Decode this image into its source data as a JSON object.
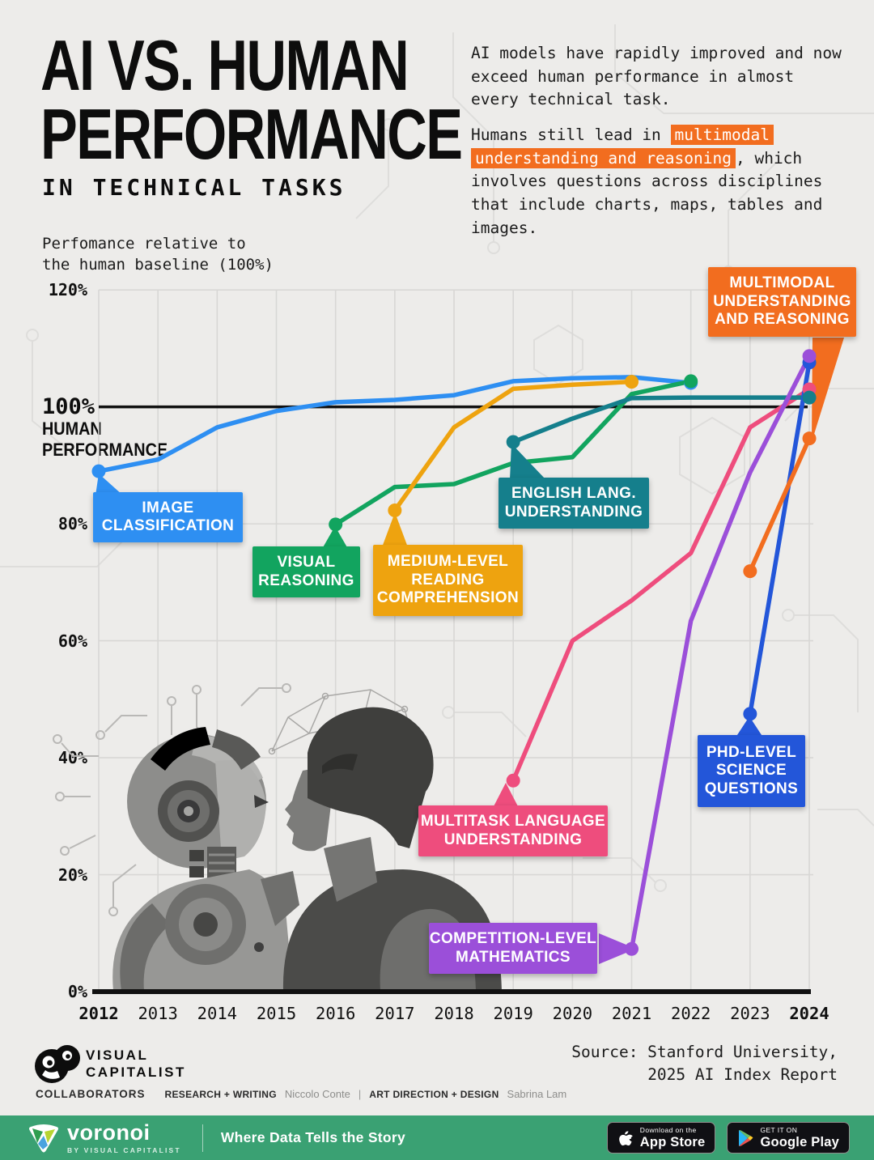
{
  "title": {
    "line1": "AI VS. HUMAN",
    "line2": "PERFORMANCE",
    "subtitle": "IN TECHNICAL TASKS"
  },
  "intro": {
    "para1": "AI models have rapidly improved and now exceed human performance in almost every technical task.",
    "para2_pre": "Humans still lead in ",
    "para2_highlight": "multimodal understanding and reasoning",
    "para2_post": ", which involves questions across disciplines that include charts, maps, tables and images.",
    "highlight_color": "#f26d1f"
  },
  "axis_note": "Perfomance relative to\nthe human baseline (100%)",
  "baseline_label": {
    "pct": "100%",
    "word1": "HUMAN",
    "word2": "PERFORMANCE"
  },
  "chart_data": {
    "type": "line",
    "title": "AI vs. human performance in technical tasks",
    "ylabel": "Performance relative to the human baseline (100%)",
    "ylim": [
      0,
      120
    ],
    "baseline": 100,
    "grid": true,
    "x": [
      2012,
      2013,
      2014,
      2015,
      2016,
      2017,
      2018,
      2019,
      2020,
      2021,
      2022,
      2023,
      2024
    ],
    "x_ticks": [
      {
        "year": 2012,
        "label": "2012",
        "bold": true
      },
      {
        "year": 2013,
        "label": "2013",
        "bold": false
      },
      {
        "year": 2014,
        "label": "2014",
        "bold": false
      },
      {
        "year": 2015,
        "label": "2015",
        "bold": false
      },
      {
        "year": 2016,
        "label": "2016",
        "bold": false
      },
      {
        "year": 2017,
        "label": "2017",
        "bold": false
      },
      {
        "year": 2018,
        "label": "2018",
        "bold": false
      },
      {
        "year": 2019,
        "label": "2019",
        "bold": false
      },
      {
        "year": 2020,
        "label": "2020",
        "bold": false
      },
      {
        "year": 2021,
        "label": "2021",
        "bold": false
      },
      {
        "year": 2022,
        "label": "2022",
        "bold": false
      },
      {
        "year": 2023,
        "label": "2023",
        "bold": false
      },
      {
        "year": 2024,
        "label": "2024",
        "bold": true
      }
    ],
    "y_ticks": [
      {
        "value": 0,
        "label": "0%"
      },
      {
        "value": 20,
        "label": "20%"
      },
      {
        "value": 40,
        "label": "40%"
      },
      {
        "value": 60,
        "label": "60%"
      },
      {
        "value": 80,
        "label": "80%"
      },
      {
        "value": 120,
        "label": "120%"
      }
    ],
    "series": [
      {
        "key": "image_classification",
        "name": "Image Classification",
        "callout": "IMAGE\nCLASSIFICATION",
        "color": "#2e8ff2",
        "points": [
          [
            2012,
            89
          ],
          [
            2013,
            91
          ],
          [
            2014,
            96.5
          ],
          [
            2015,
            99.3
          ],
          [
            2016,
            100.8
          ],
          [
            2017,
            101.2
          ],
          [
            2018,
            102
          ],
          [
            2019,
            104.4
          ],
          [
            2020,
            104.9
          ],
          [
            2021,
            105.1
          ],
          [
            2022,
            104.1
          ]
        ]
      },
      {
        "key": "visual_reasoning",
        "name": "Visual Reasoning",
        "callout": "VISUAL\nREASONING",
        "color": "#12a45f",
        "points": [
          [
            2016,
            79.9
          ],
          [
            2017,
            86.3
          ],
          [
            2018,
            86.8
          ],
          [
            2019,
            90.4
          ],
          [
            2020,
            91.4
          ],
          [
            2021,
            102.2
          ],
          [
            2022,
            104.4
          ]
        ]
      },
      {
        "key": "medium_reading",
        "name": "Medium-Level Reading Comprehension",
        "callout": "MEDIUM-LEVEL\nREADING\nCOMPREHENSION",
        "color": "#eea30f",
        "points": [
          [
            2017,
            82.3
          ],
          [
            2018,
            96.5
          ],
          [
            2019,
            103.1
          ],
          [
            2020,
            103.8
          ],
          [
            2021,
            104.3
          ]
        ]
      },
      {
        "key": "multitask",
        "name": "Multitask Language Understanding",
        "callout": "MULTITASK LANGUAGE\nUNDERSTANDING",
        "color": "#ee4d7d",
        "points": [
          [
            2019,
            36.1
          ],
          [
            2020,
            60
          ],
          [
            2021,
            66.9
          ],
          [
            2022,
            75
          ],
          [
            2023,
            96.5
          ],
          [
            2024,
            103
          ]
        ]
      },
      {
        "key": "english_lang",
        "name": "English Lang. Understanding",
        "callout": "ENGLISH LANG.\nUNDERSTANDING",
        "color": "#157f8c",
        "points": [
          [
            2019,
            94
          ],
          [
            2020,
            98
          ],
          [
            2021,
            101.5
          ],
          [
            2022,
            101.6
          ],
          [
            2023,
            101.6
          ],
          [
            2024,
            101.6
          ]
        ]
      },
      {
        "key": "phd_science",
        "name": "PhD-Level Science Questions",
        "callout": "PHD-LEVEL\nSCIENCE\nQUESTIONS",
        "color": "#2356d9",
        "points": [
          [
            2023,
            47.5
          ],
          [
            2024,
            107.6
          ]
        ]
      },
      {
        "key": "competition_math",
        "name": "Competition-Level Mathematics",
        "callout": "COMPETITION-LEVEL\nMATHEMATICS",
        "color": "#9b4fd9",
        "points": [
          [
            2021,
            7.3
          ],
          [
            2022,
            63.4
          ],
          [
            2023,
            88.8
          ],
          [
            2024,
            108.7
          ]
        ]
      },
      {
        "key": "multimodal",
        "name": "Multimodal Understanding and Reasoning",
        "callout": "MULTIMODAL\nUNDERSTANDING\nAND REASONING",
        "color": "#f26d1f",
        "points": [
          [
            2023,
            71.9
          ],
          [
            2024,
            94.6
          ]
        ]
      }
    ]
  },
  "footer": {
    "logo_line1": "VISUAL",
    "logo_line2": "CAPITALIST",
    "source": "Source: Stanford University,\n2025 AI Index Report",
    "collaborators_label": "COLLABORATORS",
    "collab1_role": "RESEARCH + WRITING",
    "collab1_name": "Niccolo Conte",
    "separator": "|",
    "collab2_role": "ART DIRECTION + DESIGN",
    "collab2_name": "Sabrina Lam"
  },
  "bottombar": {
    "bar_color": "#3aa173",
    "brand": "voronoi",
    "brand_sub": "BY VISUAL CAPITALIST",
    "tagline": "Where Data Tells the Story",
    "appstore_line1": "Download on the",
    "appstore_line2": "App Store",
    "googleplay_line1": "GET IT ON",
    "googleplay_line2": "Google Play"
  }
}
